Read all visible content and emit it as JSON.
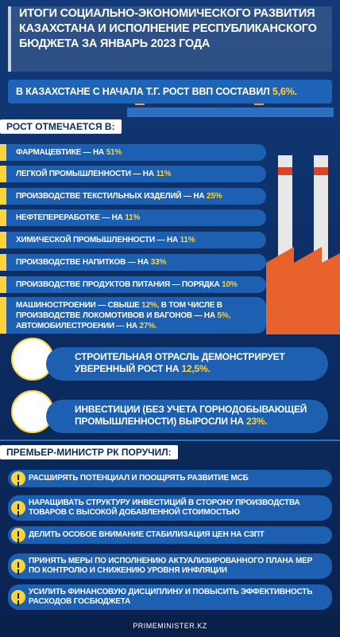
{
  "header": {
    "title_lines": [
      "ИТОГИ СОЦИАЛЬНО-ЭКОНОМИЧЕСКОГО РАЗВИТИЯ",
      "КАЗАХСТАНА И ИСПОЛНЕНИЕ РЕСПУБЛИКАНСКОГО",
      "БЮДЖЕТА ЗА ЯНВАРЬ 2023 ГОДА"
    ]
  },
  "gdp": {
    "parts": [
      "В КАЗАХСТАНЕ С НАЧАЛА Т.Г. РОСТ ВВП СОСТАВИЛ",
      "5,6%."
    ]
  },
  "growth": {
    "label": "РОСТ ОТМЕЧАЕТСЯ В:",
    "items": [
      {
        "parts": [
          "ФАРМАЦЕВТИКЕ — НА",
          "51%"
        ]
      },
      {
        "parts": [
          "ЛЕГКОЙ ПРОМЫШЛЕННОСТИ — НА",
          "11%"
        ]
      },
      {
        "parts": [
          "ПРОИЗВОДСТВЕ ТЕКСТИЛЬНЫХ ИЗДЕЛИЙ — НА",
          "25%"
        ]
      },
      {
        "parts": [
          "НЕФТЕПЕРЕРАБОТКЕ — НА",
          "11%"
        ]
      },
      {
        "parts": [
          "ХИМИЧЕСКОЙ ПРОМЫШЛЕННОСТИ — НА",
          "11%"
        ]
      },
      {
        "parts": [
          "ПРОИЗВОДСТВЕ НАПИТКОВ — НА",
          "33%"
        ]
      },
      {
        "parts": [
          "ПРОИЗВОДСТВЕ ПРОДУКТОВ ПИТАНИЯ — ПОРЯДКА",
          "10%"
        ]
      },
      {
        "parts": [
          "МАШИНОСТРОЕНИИ — СВЫШЕ",
          "12%,",
          "В ТОМ ЧИСЛЕ В ПРОИЗВОДСТВЕ ЛОКОМОТИВОВ И ВАГОНОВ — НА",
          "5%,",
          "АВТОМОБИЛЕСТРОЕНИИ — НА",
          "27%."
        ]
      }
    ]
  },
  "construction": {
    "parts": [
      "СТРОИТЕЛЬНАЯ ОТРАСЛЬ ДЕМОНСТРИРУЕТ УВЕРЕННЫЙ РОСТ НА",
      "12,5%."
    ]
  },
  "investments": {
    "parts": [
      "ИНВЕСТИЦИИ (БЕЗ УЧЕТА ГОРНОДОБЫВАЮЩЕЙ ПРОМЫШЛЕННОСТИ) ВЫРОСЛИ НА",
      "23%."
    ]
  },
  "orders": {
    "label": "ПРЕМЬЕР-МИНИСТР РК ПОРУЧИЛ:",
    "items": [
      "РАСШИРЯТЬ ПОТЕНЦИАЛ И ПООЩРЯТЬ РАЗВИТИЕ МСБ",
      "НАРАЩИВАТЬ СТРУКТУРУ ИНВЕСТИЦИЙ В СТОРОНУ ПРОИЗВОДСТВА ТОВАРОВ С ВЫСОКОЙ ДОБАВЛЕННОЙ СТОИМОСТЬЮ",
      "ДЕЛИТЬ ОСОБОЕ ВНИМАНИЕ СТАБИЛИЗАЦИЯ ЦЕН НА СЗПТ",
      "ПРИНЯТЬ МЕРЫ ПО ИСПОЛНЕНИЮ АКТУАЛИЗИРОВАННОГО ПЛАНА МЕР ПО КОНТРОЛЮ И СНИЖЕНИЮ УРОВНЯ ИНФЛЯЦИИ",
      "УСИЛИТЬ ФИНАНСОВУЮ ДИСЦИПЛИНУ И ПОВЫСИТЬ ЭФФЕКТИВНОСТЬ РАСХОДОВ ГОСБЮДЖЕТА"
    ]
  },
  "footer": {
    "site": "PRIMEMINISTER.KZ"
  }
}
